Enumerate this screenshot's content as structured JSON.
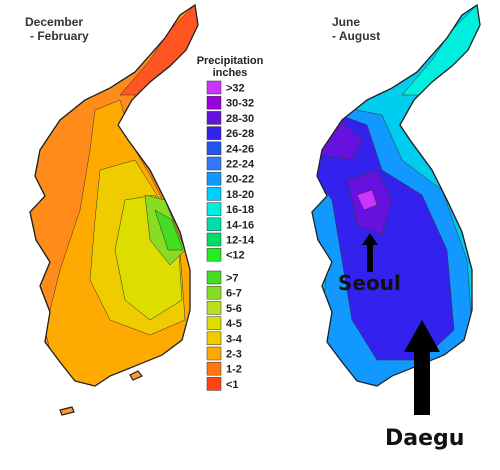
{
  "maps": [
    {
      "title_line1": "December",
      "title_line2": "- February"
    },
    {
      "title_line1": "June",
      "title_line2": "- August"
    }
  ],
  "legend": {
    "title": "Precipitation",
    "subtitle": "inches",
    "summer_items": [
      {
        "label": ">32",
        "color": "#cc33ff"
      },
      {
        "label": "30-32",
        "color": "#9900dd"
      },
      {
        "label": "28-30",
        "color": "#6611dd"
      },
      {
        "label": "26-28",
        "color": "#3322ee"
      },
      {
        "label": "24-26",
        "color": "#2255ee"
      },
      {
        "label": "22-24",
        "color": "#3377ff"
      },
      {
        "label": "20-22",
        "color": "#1199ff"
      },
      {
        "label": "18-20",
        "color": "#00ccff"
      },
      {
        "label": "16-18",
        "color": "#00eedd"
      },
      {
        "label": "14-16",
        "color": "#00ddaa"
      },
      {
        "label": "12-14",
        "color": "#00dd66"
      },
      {
        "label": "<12",
        "color": "#22ee22"
      }
    ],
    "winter_items": [
      {
        "label": ">7",
        "color": "#44dd22"
      },
      {
        "label": "6-7",
        "color": "#88dd22"
      },
      {
        "label": "5-6",
        "color": "#bbdd22"
      },
      {
        "label": "4-5",
        "color": "#dddd00"
      },
      {
        "label": "3-4",
        "color": "#eecc00"
      },
      {
        "label": "2-3",
        "color": "#ffaa00"
      },
      {
        "label": "1-2",
        "color": "#ff7711"
      },
      {
        "label": "<1",
        "color": "#ff4411"
      }
    ]
  },
  "cities": [
    {
      "name": "Seoul"
    },
    {
      "name": "Daegu"
    }
  ]
}
